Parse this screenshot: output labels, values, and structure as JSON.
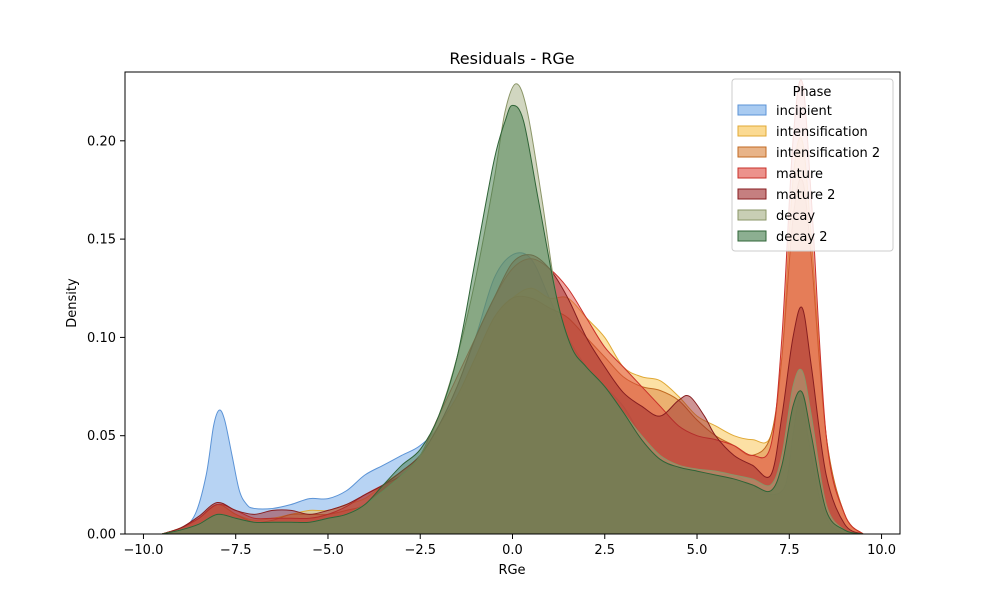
{
  "chart_data": {
    "type": "area",
    "title": "Residuals - RGe",
    "xlabel": "RGe",
    "ylabel": "Density",
    "xlim": [
      -10.5,
      10.5
    ],
    "ylim": [
      0,
      0.235
    ],
    "xticks": [
      -10.0,
      -7.5,
      -5.0,
      -2.5,
      0.0,
      2.5,
      5.0,
      7.5,
      10.0
    ],
    "xtick_labels": [
      "−10.0",
      "−7.5",
      "−5.0",
      "−2.5",
      "0.0",
      "2.5",
      "5.0",
      "7.5",
      "10.0"
    ],
    "yticks": [
      0.0,
      0.05,
      0.1,
      0.15,
      0.2
    ],
    "ytick_labels": [
      "0.00",
      "0.05",
      "0.10",
      "0.15",
      "0.20"
    ],
    "grid": false,
    "legend": {
      "title": "Phase",
      "placement": "top-right"
    },
    "series": [
      {
        "name": "incipient",
        "fill": "#6fa8e8",
        "stroke": "#5b93d6",
        "points": [
          [
            -9.5,
            0
          ],
          [
            -9,
            0.002
          ],
          [
            -8.6,
            0.01
          ],
          [
            -8.3,
            0.03
          ],
          [
            -8.1,
            0.055
          ],
          [
            -7.95,
            0.063
          ],
          [
            -7.8,
            0.058
          ],
          [
            -7.6,
            0.04
          ],
          [
            -7.4,
            0.022
          ],
          [
            -7.2,
            0.015
          ],
          [
            -7,
            0.013
          ],
          [
            -6.5,
            0.013
          ],
          [
            -6,
            0.015
          ],
          [
            -5.5,
            0.018
          ],
          [
            -5,
            0.018
          ],
          [
            -4.5,
            0.022
          ],
          [
            -4,
            0.03
          ],
          [
            -3.5,
            0.035
          ],
          [
            -3,
            0.04
          ],
          [
            -2.5,
            0.045
          ],
          [
            -2,
            0.055
          ],
          [
            -1.5,
            0.075
          ],
          [
            -1,
            0.1
          ],
          [
            -0.5,
            0.13
          ],
          [
            0,
            0.142
          ],
          [
            0.5,
            0.14
          ],
          [
            1,
            0.12
          ],
          [
            1.5,
            0.1
          ],
          [
            2,
            0.085
          ],
          [
            2.5,
            0.075
          ],
          [
            3,
            0.065
          ],
          [
            3.5,
            0.05
          ],
          [
            4,
            0.04
          ],
          [
            4.5,
            0.033
          ],
          [
            5,
            0.032
          ],
          [
            5.5,
            0.03
          ],
          [
            6,
            0.03
          ],
          [
            6.5,
            0.025
          ],
          [
            7,
            0.02
          ],
          [
            7.4,
            0.025
          ],
          [
            7.6,
            0.05
          ],
          [
            7.8,
            0.07
          ],
          [
            8,
            0.05
          ],
          [
            8.3,
            0.02
          ],
          [
            8.6,
            0.005
          ],
          [
            9,
            0
          ]
        ]
      },
      {
        "name": "intensification",
        "fill": "#f9c14a",
        "stroke": "#e0a936",
        "points": [
          [
            -9.5,
            0
          ],
          [
            -9,
            0.003
          ],
          [
            -8.5,
            0.008
          ],
          [
            -8,
            0.015
          ],
          [
            -7.5,
            0.01
          ],
          [
            -7,
            0.007
          ],
          [
            -6.5,
            0.008
          ],
          [
            -6,
            0.01
          ],
          [
            -5.5,
            0.012
          ],
          [
            -5,
            0.012
          ],
          [
            -4.5,
            0.015
          ],
          [
            -4,
            0.018
          ],
          [
            -3.5,
            0.025
          ],
          [
            -3,
            0.03
          ],
          [
            -2.5,
            0.04
          ],
          [
            -2,
            0.055
          ],
          [
            -1.5,
            0.07
          ],
          [
            -1,
            0.09
          ],
          [
            -0.5,
            0.11
          ],
          [
            0,
            0.12
          ],
          [
            0.5,
            0.125
          ],
          [
            1,
            0.12
          ],
          [
            1.5,
            0.12
          ],
          [
            2,
            0.11
          ],
          [
            2.5,
            0.1
          ],
          [
            3,
            0.085
          ],
          [
            3.5,
            0.08
          ],
          [
            4,
            0.078
          ],
          [
            4.5,
            0.07
          ],
          [
            5,
            0.06
          ],
          [
            5.5,
            0.055
          ],
          [
            6,
            0.05
          ],
          [
            6.5,
            0.048
          ],
          [
            7,
            0.05
          ],
          [
            7.3,
            0.09
          ],
          [
            7.6,
            0.18
          ],
          [
            7.85,
            0.2
          ],
          [
            8.1,
            0.15
          ],
          [
            8.5,
            0.05
          ],
          [
            9,
            0.01
          ],
          [
            9.5,
            0
          ]
        ]
      },
      {
        "name": "intensification 2",
        "fill": "#d9823b",
        "stroke": "#c26a22",
        "points": [
          [
            -9.5,
            0
          ],
          [
            -9,
            0.003
          ],
          [
            -8.5,
            0.008
          ],
          [
            -8,
            0.015
          ],
          [
            -7.5,
            0.01
          ],
          [
            -7,
            0.006
          ],
          [
            -6.5,
            0.007
          ],
          [
            -6,
            0.01
          ],
          [
            -5.5,
            0.01
          ],
          [
            -5,
            0.01
          ],
          [
            -4.5,
            0.012
          ],
          [
            -4,
            0.015
          ],
          [
            -3.5,
            0.025
          ],
          [
            -3,
            0.032
          ],
          [
            -2.5,
            0.04
          ],
          [
            -2,
            0.055
          ],
          [
            -1.5,
            0.07
          ],
          [
            -1,
            0.09
          ],
          [
            -0.5,
            0.11
          ],
          [
            0,
            0.12
          ],
          [
            0.5,
            0.12
          ],
          [
            1,
            0.115
          ],
          [
            1.5,
            0.11
          ],
          [
            2,
            0.1
          ],
          [
            2.5,
            0.09
          ],
          [
            3,
            0.08
          ],
          [
            3.5,
            0.075
          ],
          [
            4,
            0.073
          ],
          [
            4.5,
            0.068
          ],
          [
            5,
            0.058
          ],
          [
            5.5,
            0.05
          ],
          [
            6,
            0.045
          ],
          [
            6.5,
            0.04
          ],
          [
            7,
            0.05
          ],
          [
            7.3,
            0.09
          ],
          [
            7.6,
            0.16
          ],
          [
            7.85,
            0.18
          ],
          [
            8.1,
            0.14
          ],
          [
            8.5,
            0.05
          ],
          [
            9,
            0.01
          ],
          [
            9.5,
            0
          ]
        ]
      },
      {
        "name": "mature",
        "fill": "#e04a3f",
        "stroke": "#c9302a",
        "points": [
          [
            -9.5,
            0
          ],
          [
            -9,
            0.003
          ],
          [
            -8.5,
            0.008
          ],
          [
            -8,
            0.015
          ],
          [
            -7.5,
            0.012
          ],
          [
            -7,
            0.008
          ],
          [
            -6.5,
            0.008
          ],
          [
            -6,
            0.008
          ],
          [
            -5.5,
            0.008
          ],
          [
            -5,
            0.01
          ],
          [
            -4.5,
            0.014
          ],
          [
            -4,
            0.02
          ],
          [
            -3.5,
            0.025
          ],
          [
            -3,
            0.03
          ],
          [
            -2.5,
            0.04
          ],
          [
            -2,
            0.06
          ],
          [
            -1.5,
            0.08
          ],
          [
            -1,
            0.1
          ],
          [
            -0.5,
            0.12
          ],
          [
            0,
            0.135
          ],
          [
            0.5,
            0.14
          ],
          [
            1,
            0.135
          ],
          [
            1.5,
            0.125
          ],
          [
            2,
            0.11
          ],
          [
            2.5,
            0.095
          ],
          [
            3,
            0.085
          ],
          [
            3.5,
            0.075
          ],
          [
            4,
            0.065
          ],
          [
            4.5,
            0.055
          ],
          [
            5,
            0.05
          ],
          [
            5.5,
            0.048
          ],
          [
            6,
            0.045
          ],
          [
            6.5,
            0.04
          ],
          [
            7,
            0.045
          ],
          [
            7.3,
            0.1
          ],
          [
            7.6,
            0.2
          ],
          [
            7.85,
            0.23
          ],
          [
            8.1,
            0.17
          ],
          [
            8.5,
            0.05
          ],
          [
            9,
            0.01
          ],
          [
            9.5,
            0
          ]
        ]
      },
      {
        "name": "mature 2",
        "fill": "#9e2a2b",
        "stroke": "#871e20",
        "points": [
          [
            -9.5,
            0
          ],
          [
            -9,
            0.003
          ],
          [
            -8.5,
            0.009
          ],
          [
            -8,
            0.016
          ],
          [
            -7.5,
            0.012
          ],
          [
            -7,
            0.01
          ],
          [
            -6.5,
            0.012
          ],
          [
            -6,
            0.012
          ],
          [
            -5.5,
            0.01
          ],
          [
            -5,
            0.012
          ],
          [
            -4.5,
            0.015
          ],
          [
            -4,
            0.02
          ],
          [
            -3.5,
            0.025
          ],
          [
            -3,
            0.032
          ],
          [
            -2.5,
            0.04
          ],
          [
            -2,
            0.055
          ],
          [
            -1.5,
            0.075
          ],
          [
            -1,
            0.1
          ],
          [
            -0.5,
            0.12
          ],
          [
            0,
            0.138
          ],
          [
            0.5,
            0.142
          ],
          [
            1,
            0.135
          ],
          [
            1.5,
            0.12
          ],
          [
            2,
            0.1
          ],
          [
            2.5,
            0.085
          ],
          [
            3,
            0.072
          ],
          [
            3.5,
            0.065
          ],
          [
            4,
            0.06
          ],
          [
            4.5,
            0.068
          ],
          [
            4.8,
            0.07
          ],
          [
            5.2,
            0.06
          ],
          [
            5.5,
            0.05
          ],
          [
            6,
            0.04
          ],
          [
            6.5,
            0.035
          ],
          [
            7,
            0.03
          ],
          [
            7.3,
            0.06
          ],
          [
            7.6,
            0.1
          ],
          [
            7.85,
            0.115
          ],
          [
            8.1,
            0.085
          ],
          [
            8.5,
            0.03
          ],
          [
            9,
            0.005
          ],
          [
            9.5,
            0
          ]
        ]
      },
      {
        "name": "decay",
        "fill": "#a3ad82",
        "stroke": "#8a9567",
        "points": [
          [
            -9.5,
            0
          ],
          [
            -9,
            0.002
          ],
          [
            -8.5,
            0.005
          ],
          [
            -8,
            0.01
          ],
          [
            -7.5,
            0.008
          ],
          [
            -7,
            0.006
          ],
          [
            -6.5,
            0.006
          ],
          [
            -6,
            0.006
          ],
          [
            -5.5,
            0.006
          ],
          [
            -5,
            0.008
          ],
          [
            -4.5,
            0.01
          ],
          [
            -4,
            0.015
          ],
          [
            -3.5,
            0.022
          ],
          [
            -3,
            0.03
          ],
          [
            -2.5,
            0.04
          ],
          [
            -2,
            0.06
          ],
          [
            -1.5,
            0.09
          ],
          [
            -1,
            0.13
          ],
          [
            -0.5,
            0.18
          ],
          [
            -0.2,
            0.215
          ],
          [
            0.1,
            0.229
          ],
          [
            0.4,
            0.215
          ],
          [
            0.8,
            0.17
          ],
          [
            1.2,
            0.12
          ],
          [
            1.6,
            0.095
          ],
          [
            2,
            0.085
          ],
          [
            2.5,
            0.075
          ],
          [
            3,
            0.062
          ],
          [
            3.5,
            0.05
          ],
          [
            4,
            0.04
          ],
          [
            4.5,
            0.035
          ],
          [
            5,
            0.033
          ],
          [
            5.5,
            0.032
          ],
          [
            6,
            0.03
          ],
          [
            6.5,
            0.028
          ],
          [
            7,
            0.025
          ],
          [
            7.3,
            0.04
          ],
          [
            7.6,
            0.075
          ],
          [
            7.85,
            0.083
          ],
          [
            8.1,
            0.06
          ],
          [
            8.5,
            0.015
          ],
          [
            9,
            0.002
          ],
          [
            9.5,
            0
          ]
        ]
      },
      {
        "name": "decay 2",
        "fill": "#3f7a47",
        "stroke": "#2f6437",
        "points": [
          [
            -9.5,
            0
          ],
          [
            -9,
            0.002
          ],
          [
            -8.5,
            0.005
          ],
          [
            -8,
            0.01
          ],
          [
            -7.5,
            0.008
          ],
          [
            -7,
            0.006
          ],
          [
            -6.5,
            0.006
          ],
          [
            -6,
            0.006
          ],
          [
            -5.5,
            0.006
          ],
          [
            -5,
            0.008
          ],
          [
            -4.5,
            0.01
          ],
          [
            -4,
            0.015
          ],
          [
            -3.5,
            0.025
          ],
          [
            -3,
            0.035
          ],
          [
            -2.5,
            0.043
          ],
          [
            -2,
            0.06
          ],
          [
            -1.5,
            0.09
          ],
          [
            -1,
            0.14
          ],
          [
            -0.5,
            0.19
          ],
          [
            -0.2,
            0.21
          ],
          [
            0,
            0.218
          ],
          [
            0.3,
            0.21
          ],
          [
            0.7,
            0.17
          ],
          [
            1.2,
            0.12
          ],
          [
            1.6,
            0.095
          ],
          [
            2,
            0.085
          ],
          [
            2.5,
            0.075
          ],
          [
            3,
            0.062
          ],
          [
            3.5,
            0.048
          ],
          [
            4,
            0.038
          ],
          [
            4.5,
            0.034
          ],
          [
            5,
            0.032
          ],
          [
            5.5,
            0.03
          ],
          [
            6,
            0.028
          ],
          [
            6.5,
            0.025
          ],
          [
            7,
            0.022
          ],
          [
            7.3,
            0.035
          ],
          [
            7.6,
            0.065
          ],
          [
            7.85,
            0.072
          ],
          [
            8.1,
            0.05
          ],
          [
            8.5,
            0.012
          ],
          [
            9,
            0.002
          ],
          [
            9.5,
            0
          ]
        ]
      }
    ]
  }
}
